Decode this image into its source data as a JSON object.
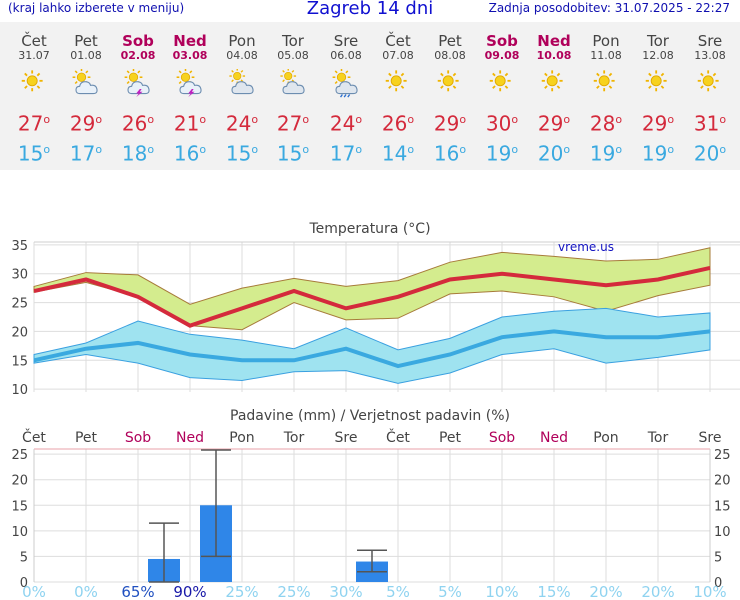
{
  "header": {
    "hint": "(kraj lahko izberete v meniju)",
    "title": "Zagreb 14 dni",
    "updated": "Zadnja posodobitev: 31.07.2025 - 22:27"
  },
  "days": [
    {
      "name": "Čet",
      "date": "31.07",
      "weekend": false,
      "icon": "sun",
      "tmax": "27",
      "tmin": "15"
    },
    {
      "name": "Pet",
      "date": "01.08",
      "weekend": false,
      "icon": "sun-cloud",
      "tmax": "29",
      "tmin": "17"
    },
    {
      "name": "Sob",
      "date": "02.08",
      "weekend": true,
      "icon": "sun-cloud-storm",
      "tmax": "26",
      "tmin": "18"
    },
    {
      "name": "Ned",
      "date": "03.08",
      "weekend": true,
      "icon": "sun-cloud-storm",
      "tmax": "21",
      "tmin": "16"
    },
    {
      "name": "Pon",
      "date": "04.08",
      "weekend": false,
      "icon": "partly-cloudy",
      "tmax": "24",
      "tmin": "15"
    },
    {
      "name": "Tor",
      "date": "05.08",
      "weekend": false,
      "icon": "partly-cloudy",
      "tmax": "27",
      "tmin": "15"
    },
    {
      "name": "Sre",
      "date": "06.08",
      "weekend": false,
      "icon": "sun-cloud-rain",
      "tmax": "24",
      "tmin": "17"
    },
    {
      "name": "Čet",
      "date": "07.08",
      "weekend": false,
      "icon": "sun",
      "tmax": "26",
      "tmin": "14"
    },
    {
      "name": "Pet",
      "date": "08.08",
      "weekend": false,
      "icon": "sun",
      "tmax": "29",
      "tmin": "16"
    },
    {
      "name": "Sob",
      "date": "09.08",
      "weekend": true,
      "icon": "sun",
      "tmax": "30",
      "tmin": "19"
    },
    {
      "name": "Ned",
      "date": "10.08",
      "weekend": true,
      "icon": "sun",
      "tmax": "29",
      "tmin": "20"
    },
    {
      "name": "Pon",
      "date": "11.08",
      "weekend": false,
      "icon": "sun",
      "tmax": "28",
      "tmin": "19"
    },
    {
      "name": "Tor",
      "date": "12.08",
      "weekend": false,
      "icon": "sun",
      "tmax": "29",
      "tmin": "19"
    },
    {
      "name": "Sre",
      "date": "13.08",
      "weekend": false,
      "icon": "sun",
      "tmax": "31",
      "tmin": "20"
    }
  ],
  "colors": {
    "tmax": "#d42a3c",
    "tmin": "#3aa9e0",
    "weekend": "#b0005a",
    "precip": "#2f86e8",
    "prob": "#8fd3f0"
  },
  "chart_data": [
    {
      "type": "line",
      "title": "Temperatura (°C)",
      "watermark": "vreme.us",
      "ylim": [
        9.5,
        35.5
      ],
      "yticks": [
        10,
        15,
        20,
        25,
        30,
        35
      ],
      "x": [
        "Čet",
        "Pet",
        "Sob",
        "Ned",
        "Pon",
        "Tor",
        "Sre",
        "Čet",
        "Pet",
        "Sob",
        "Ned",
        "Pon",
        "Tor",
        "Sre"
      ],
      "series": [
        {
          "role": "max",
          "values": [
            27,
            29,
            26,
            21,
            24,
            27,
            24,
            26,
            29,
            30,
            29,
            28,
            29,
            31
          ],
          "band_low": [
            26.8,
            28.5,
            26,
            21,
            20.3,
            25,
            22,
            22.3,
            26.5,
            27,
            26,
            23.5,
            26.2,
            28
          ],
          "band_high": [
            27.8,
            30.2,
            29.8,
            24.7,
            27.5,
            29.2,
            27.8,
            28.8,
            32,
            33.7,
            33,
            32.2,
            32.5,
            34.5
          ]
        },
        {
          "role": "min",
          "values": [
            15,
            17,
            18,
            16,
            15,
            15,
            17,
            14,
            16,
            19,
            20,
            19,
            19,
            20
          ],
          "band_low": [
            14.5,
            16,
            14.5,
            12,
            11.5,
            13,
            13.2,
            11,
            12.8,
            16,
            17,
            14.5,
            15.5,
            16.8
          ],
          "band_high": [
            16,
            18,
            21.8,
            19.5,
            18.5,
            17,
            20.6,
            16.8,
            18.8,
            22.5,
            23.5,
            24,
            22.5,
            23.2
          ]
        }
      ]
    },
    {
      "type": "bar",
      "title": "Padavine (mm) / Verjetnost padavin (%)",
      "ylim": [
        0,
        26
      ],
      "yticks": [
        0,
        5,
        10,
        15,
        20,
        25
      ],
      "categories": [
        "Čet",
        "Pet",
        "Sob",
        "Ned",
        "Pon",
        "Tor",
        "Sre",
        "Čet",
        "Pet",
        "Sob",
        "Ned",
        "Pon",
        "Tor",
        "Sre"
      ],
      "values": [
        0,
        0,
        4.5,
        15,
        0,
        0,
        4,
        0,
        0,
        0,
        0,
        0,
        0,
        0
      ],
      "error_low": [
        0,
        0,
        0,
        5,
        0,
        0,
        2,
        0,
        0,
        0,
        0,
        0,
        0,
        0
      ],
      "error_high": [
        0,
        0,
        11.5,
        25.8,
        0,
        0,
        6.2,
        0,
        0,
        0,
        0,
        0,
        0,
        0
      ],
      "probability": [
        "0%",
        "0%",
        "65%",
        "90%",
        "25%",
        "25%",
        "30%",
        "5%",
        "5%",
        "10%",
        "15%",
        "20%",
        "20%",
        "10%"
      ]
    }
  ]
}
